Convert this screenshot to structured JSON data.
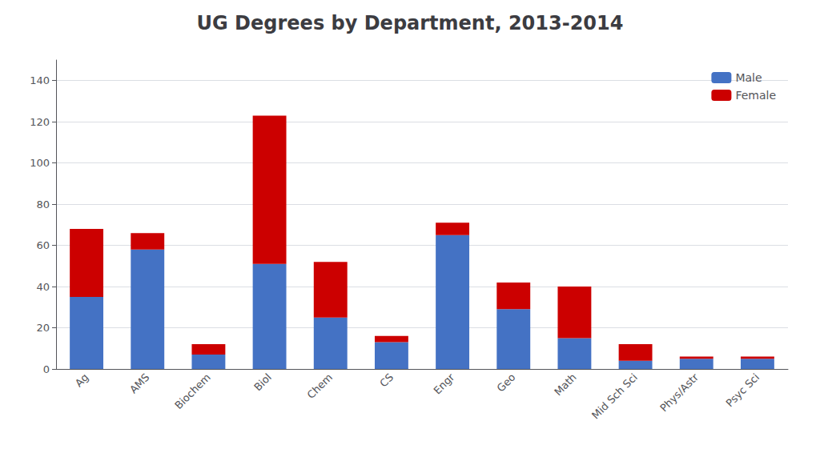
{
  "chart_data": {
    "type": "bar",
    "title": "UG Degrees by Department, 2013-2014",
    "categories": [
      "Ag",
      "AMS",
      "Biochem",
      "Biol",
      "Chem",
      "CS",
      "Engr",
      "Geo",
      "Math",
      "Mid Sch Sci",
      "Phys/Astr",
      "Psyc Sci"
    ],
    "series": [
      {
        "name": "Male",
        "color": "#4472C4",
        "values": [
          35,
          58,
          7,
          51,
          25,
          13,
          65,
          29,
          15,
          4,
          5,
          5
        ]
      },
      {
        "name": "Female",
        "color": "#CC0000",
        "values": [
          33,
          8,
          5,
          72,
          27,
          3,
          6,
          13,
          25,
          8,
          1,
          1
        ]
      }
    ],
    "stacked": true,
    "ylim": [
      0,
      150
    ],
    "yticks": [
      0,
      20,
      40,
      60,
      80,
      100,
      120,
      140
    ],
    "grid": true,
    "legend": "upper right"
  }
}
